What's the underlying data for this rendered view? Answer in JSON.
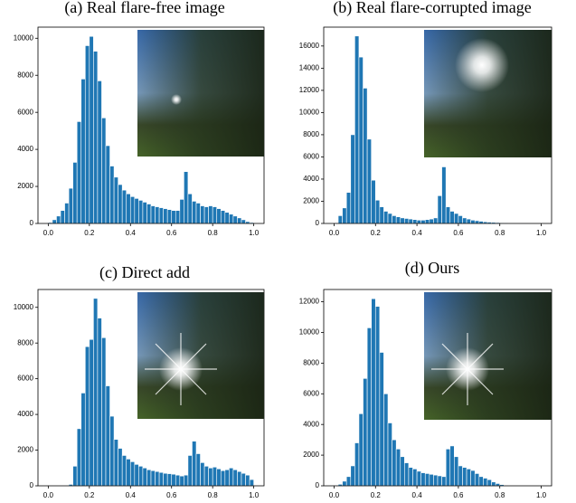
{
  "chart_data": [
    {
      "type": "histogram",
      "title": "(a) Real flare-free image",
      "color": "#1f77b4",
      "bins": [
        0,
        0.02,
        0.04,
        0.06,
        0.08,
        0.1,
        0.12,
        0.14,
        0.16,
        0.18,
        0.2,
        0.22,
        0.24,
        0.26,
        0.28,
        0.3,
        0.32,
        0.34,
        0.36,
        0.38,
        0.4,
        0.42,
        0.44,
        0.46,
        0.48,
        0.5,
        0.52,
        0.54,
        0.56,
        0.58,
        0.6,
        0.62,
        0.64,
        0.66,
        0.68,
        0.7,
        0.72,
        0.74,
        0.76,
        0.78,
        0.8,
        0.82,
        0.84,
        0.86,
        0.88,
        0.9,
        0.92,
        0.94,
        0.96,
        0.98,
        1.0
      ],
      "values": [
        50,
        200,
        400,
        700,
        1100,
        1900,
        3300,
        5500,
        7800,
        9600,
        10100,
        9300,
        7700,
        5700,
        4200,
        3100,
        2500,
        2100,
        1800,
        1600,
        1450,
        1350,
        1250,
        1150,
        1050,
        950,
        900,
        850,
        800,
        750,
        700,
        700,
        1300,
        2800,
        1600,
        1200,
        1100,
        950,
        900,
        950,
        900,
        800,
        700,
        600,
        500,
        400,
        300,
        200,
        100,
        50
      ],
      "xlim": [
        -0.05,
        1.05
      ],
      "xticks": [
        {
          "value": 0,
          "label": "0.0"
        },
        {
          "value": 0.2,
          "label": "0.2"
        },
        {
          "value": 0.4,
          "label": "0.4"
        },
        {
          "value": 0.6,
          "label": "0.6"
        },
        {
          "value": 0.8,
          "label": "0.8"
        },
        {
          "value": 1,
          "label": "1.0"
        }
      ],
      "ylim": [
        0,
        10600
      ],
      "yticks": [
        0,
        2000,
        4000,
        6000,
        8000,
        10000
      ]
    },
    {
      "type": "histogram",
      "title": "(b) Real flare-corrupted image",
      "color": "#1f77b4",
      "bins": [
        0,
        0.02,
        0.04,
        0.06,
        0.08,
        0.1,
        0.12,
        0.14,
        0.16,
        0.18,
        0.2,
        0.22,
        0.24,
        0.26,
        0.28,
        0.3,
        0.32,
        0.34,
        0.36,
        0.38,
        0.4,
        0.42,
        0.44,
        0.46,
        0.48,
        0.5,
        0.52,
        0.54,
        0.56,
        0.58,
        0.6,
        0.62,
        0.64,
        0.66,
        0.68,
        0.7,
        0.72,
        0.74,
        0.76,
        0.78,
        0.8,
        0.82,
        0.84,
        0.86,
        0.88,
        0.9,
        0.92,
        0.94,
        0.96,
        0.98,
        1.0
      ],
      "values": [
        50,
        700,
        1400,
        2800,
        8000,
        16900,
        15000,
        12200,
        7600,
        3900,
        2100,
        1500,
        1100,
        900,
        700,
        600,
        500,
        450,
        400,
        350,
        300,
        300,
        350,
        400,
        500,
        2500,
        5100,
        1500,
        1100,
        900,
        700,
        500,
        400,
        300,
        250,
        200,
        150,
        120,
        100,
        80,
        60,
        50,
        40,
        30,
        20,
        10,
        5,
        0,
        0,
        0
      ],
      "xlim": [
        -0.05,
        1.05
      ],
      "xticks": [
        {
          "value": 0,
          "label": "0.0"
        },
        {
          "value": 0.2,
          "label": "0.2"
        },
        {
          "value": 0.4,
          "label": "0.4"
        },
        {
          "value": 0.6,
          "label": "0.6"
        },
        {
          "value": 0.8,
          "label": "0.8"
        },
        {
          "value": 1,
          "label": "1.0"
        }
      ],
      "ylim": [
        0,
        17700
      ],
      "yticks": [
        0,
        2000,
        4000,
        6000,
        8000,
        10000,
        12000,
        14000,
        16000
      ]
    },
    {
      "type": "histogram",
      "title": "(c) Direct add",
      "color": "#1f77b4",
      "bins": [
        0,
        0.02,
        0.04,
        0.06,
        0.08,
        0.1,
        0.12,
        0.14,
        0.16,
        0.18,
        0.2,
        0.22,
        0.24,
        0.26,
        0.28,
        0.3,
        0.32,
        0.34,
        0.36,
        0.38,
        0.4,
        0.42,
        0.44,
        0.46,
        0.48,
        0.5,
        0.52,
        0.54,
        0.56,
        0.58,
        0.6,
        0.62,
        0.64,
        0.66,
        0.68,
        0.7,
        0.72,
        0.74,
        0.76,
        0.78,
        0.8,
        0.82,
        0.84,
        0.86,
        0.88,
        0.9,
        0.92,
        0.94,
        0.96,
        0.98,
        1.0
      ],
      "values": [
        0,
        0,
        0,
        0,
        0,
        80,
        1100,
        3200,
        5200,
        7800,
        8200,
        10500,
        9400,
        8300,
        5600,
        3900,
        2600,
        2100,
        1700,
        1500,
        1350,
        1200,
        1100,
        1000,
        900,
        850,
        800,
        750,
        700,
        680,
        650,
        600,
        550,
        600,
        1700,
        2500,
        1800,
        1300,
        1100,
        1000,
        1050,
        950,
        850,
        900,
        1000,
        900,
        800,
        700,
        600,
        350
      ],
      "xlim": [
        -0.05,
        1.05
      ],
      "xticks": [
        {
          "value": 0,
          "label": "0.0"
        },
        {
          "value": 0.2,
          "label": "0.2"
        },
        {
          "value": 0.4,
          "label": "0.4"
        },
        {
          "value": 0.6,
          "label": "0.6"
        },
        {
          "value": 0.8,
          "label": "0.8"
        },
        {
          "value": 1,
          "label": "1.0"
        }
      ],
      "ylim": [
        0,
        11000
      ],
      "yticks": [
        0,
        2000,
        4000,
        6000,
        8000,
        10000
      ]
    },
    {
      "type": "histogram",
      "title": "(d) Ours",
      "color": "#1f77b4",
      "bins": [
        0,
        0.02,
        0.04,
        0.06,
        0.08,
        0.1,
        0.12,
        0.14,
        0.16,
        0.18,
        0.2,
        0.22,
        0.24,
        0.26,
        0.28,
        0.3,
        0.32,
        0.34,
        0.36,
        0.38,
        0.4,
        0.42,
        0.44,
        0.46,
        0.48,
        0.5,
        0.52,
        0.54,
        0.56,
        0.58,
        0.6,
        0.62,
        0.64,
        0.66,
        0.68,
        0.7,
        0.72,
        0.74,
        0.76,
        0.78,
        0.8,
        0.82,
        0.84,
        0.86,
        0.88,
        0.9,
        0.92,
        0.94,
        0.96,
        0.98,
        1.0
      ],
      "values": [
        0,
        100,
        300,
        600,
        1300,
        2800,
        4700,
        7000,
        10300,
        12200,
        11700,
        8700,
        6000,
        4100,
        3000,
        2400,
        1900,
        1500,
        1200,
        1100,
        950,
        850,
        800,
        750,
        700,
        650,
        600,
        2400,
        2600,
        1900,
        1300,
        1200,
        1100,
        1000,
        800,
        600,
        500,
        400,
        250,
        150,
        80,
        30,
        0,
        0,
        0,
        0,
        0,
        0,
        0,
        0
      ],
      "xlim": [
        -0.05,
        1.05
      ],
      "xticks": [
        {
          "value": 0,
          "label": "0.0"
        },
        {
          "value": 0.2,
          "label": "0.2"
        },
        {
          "value": 0.4,
          "label": "0.4"
        },
        {
          "value": 0.6,
          "label": "0.6"
        },
        {
          "value": 0.8,
          "label": "0.8"
        },
        {
          "value": 1,
          "label": "1.0"
        }
      ],
      "ylim": [
        0,
        12800
      ],
      "yticks": [
        0,
        2000,
        4000,
        6000,
        8000,
        10000,
        12000
      ]
    }
  ]
}
